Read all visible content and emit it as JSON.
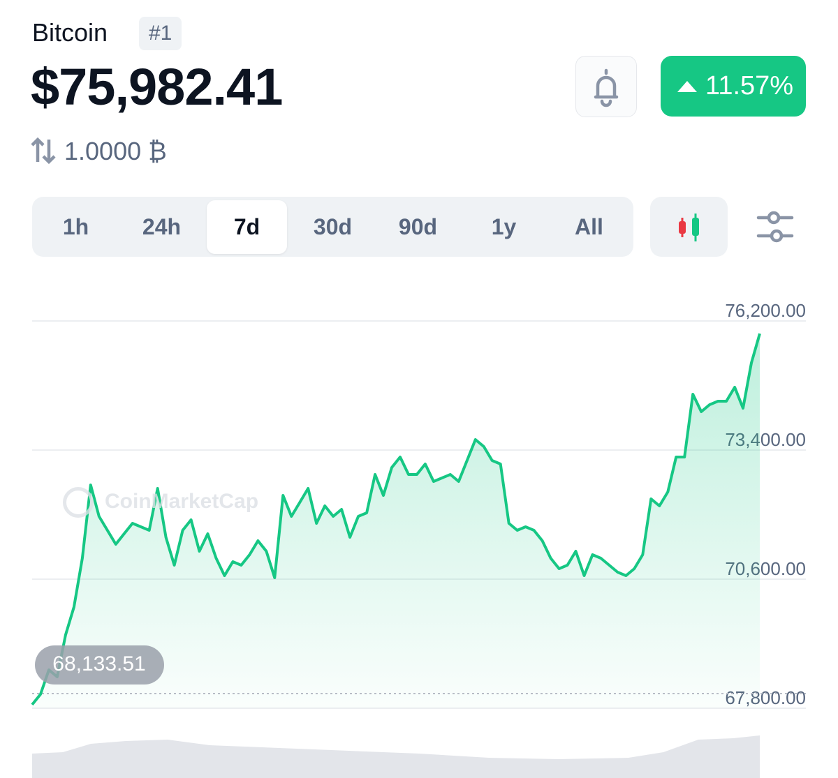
{
  "header": {
    "name": "Bitcoin",
    "rank": "#1",
    "price": "$75,982.41",
    "change": "11.57%",
    "converter": "1.0000 ₿"
  },
  "tabs": {
    "items": [
      "1h",
      "24h",
      "7d",
      "30d",
      "90d",
      "1y",
      "All"
    ],
    "active": 2
  },
  "watermark": "CoinMarketCap",
  "chart_data": {
    "type": "line",
    "color": "#16c784",
    "values": [
      67680,
      67906,
      68436,
      68284,
      69192,
      69798,
      70857,
      72446,
      71765,
      71463,
      71160,
      71387,
      71614,
      71538,
      71463,
      72371,
      71311,
      70706,
      71463,
      71690,
      71009,
      71387,
      70857,
      70479,
      70782,
      70706,
      70933,
      71236,
      71009,
      70433,
      72220,
      71765,
      72068,
      72371,
      71614,
      71993,
      71765,
      71917,
      71311,
      71765,
      71841,
      72674,
      72220,
      72825,
      73052,
      72674,
      72674,
      72901,
      72522,
      72598,
      72674,
      72522,
      72976,
      73430,
      73279,
      72976,
      72901,
      71614,
      71463,
      71538,
      71463,
      71236,
      70857,
      70630,
      70706,
      71009,
      70479,
      70933,
      70857,
      70706,
      70554,
      70479,
      70630,
      70933,
      72144,
      71993,
      72295,
      73052,
      73052,
      74414,
      74036,
      74187,
      74263,
      74263,
      74565,
      74111,
      75095,
      75730
    ],
    "ylim": [
      67800,
      76200
    ],
    "yticks": [
      {
        "value": 67800,
        "label": "67,800.00"
      },
      {
        "value": 70600,
        "label": "70,600.00"
      },
      {
        "value": 73400,
        "label": "73,400.00"
      },
      {
        "value": 76200,
        "label": "76,200.00"
      }
    ],
    "grid": true,
    "reference": {
      "value": 68133.51,
      "label": "68,133.51"
    }
  }
}
